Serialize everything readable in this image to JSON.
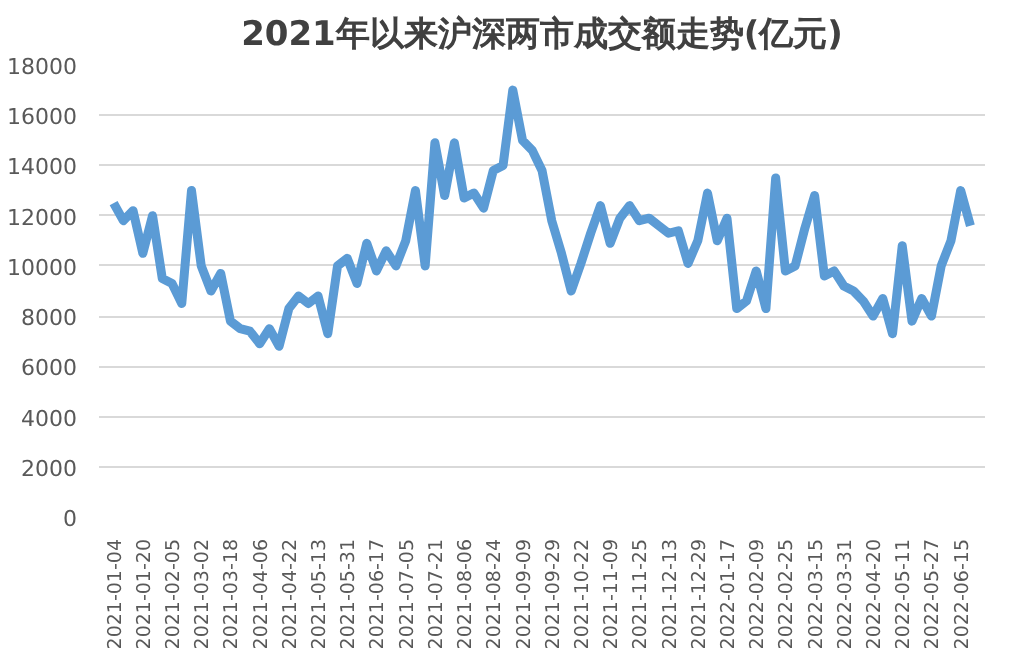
{
  "chart_data": {
    "type": "line",
    "title": "2021年以来沪深两市成交额走势(亿元)",
    "categories": [
      "2021-01-04",
      null,
      null,
      "2021-01-20",
      null,
      null,
      "2021-02-05",
      null,
      null,
      "2021-03-02",
      null,
      null,
      "2021-03-18",
      null,
      null,
      "2021-04-06",
      null,
      null,
      "2021-04-22",
      null,
      null,
      "2021-05-13",
      null,
      null,
      "2021-05-31",
      null,
      null,
      "2021-06-17",
      null,
      null,
      "2021-07-05",
      null,
      null,
      "2021-07-21",
      null,
      null,
      "2021-08-06",
      null,
      null,
      "2021-08-24",
      null,
      null,
      "2021-09-09",
      null,
      null,
      "2021-09-29",
      null,
      null,
      "2021-10-22",
      null,
      null,
      "2021-11-09",
      null,
      null,
      "2021-11-25",
      null,
      null,
      "2021-12-13",
      null,
      null,
      "2021-12-29",
      null,
      null,
      "2022-01-17",
      null,
      null,
      "2022-02-09",
      null,
      null,
      "2022-02-25",
      null,
      null,
      "2022-03-15",
      null,
      null,
      "2022-03-31",
      null,
      null,
      "2022-04-20",
      null,
      null,
      "2022-05-11",
      null,
      null,
      "2022-05-27",
      null,
      null,
      "2022-06-15",
      null
    ],
    "series": [
      {
        "color": "#5b9bd5",
        "values": [
          12500,
          11800,
          12200,
          10500,
          12000,
          9500,
          9300,
          8500,
          13000,
          10000,
          9000,
          9700,
          7800,
          7500,
          7400,
          6900,
          7500,
          6800,
          8300,
          8800,
          8500,
          8800,
          7300,
          10000,
          10300,
          9300,
          10900,
          9800,
          10600,
          10000,
          11000,
          13000,
          10000,
          14900,
          12800,
          14900,
          12700,
          12900,
          12300,
          13800,
          14000,
          17000,
          15000,
          14600,
          13800,
          11800,
          10500,
          9000,
          10100,
          11300,
          12400,
          10900,
          11900,
          12400,
          11800,
          11900,
          11600,
          11300,
          11400,
          10100,
          11000,
          12900,
          11000,
          11900,
          8300,
          8600,
          9800,
          8300,
          13500,
          9800,
          10000,
          11500,
          12800,
          9600,
          9800,
          9200,
          9000,
          8600,
          8000,
          8700,
          7300,
          10800,
          7800,
          8700,
          8000,
          10000,
          11000,
          13000,
          11600
        ]
      }
    ],
    "ylim": [
      0,
      18000
    ],
    "yticks": [
      0,
      2000,
      4000,
      6000,
      8000,
      10000,
      12000,
      14000,
      16000,
      18000
    ],
    "grid": "y",
    "line_style": "solid",
    "marker": "none"
  }
}
